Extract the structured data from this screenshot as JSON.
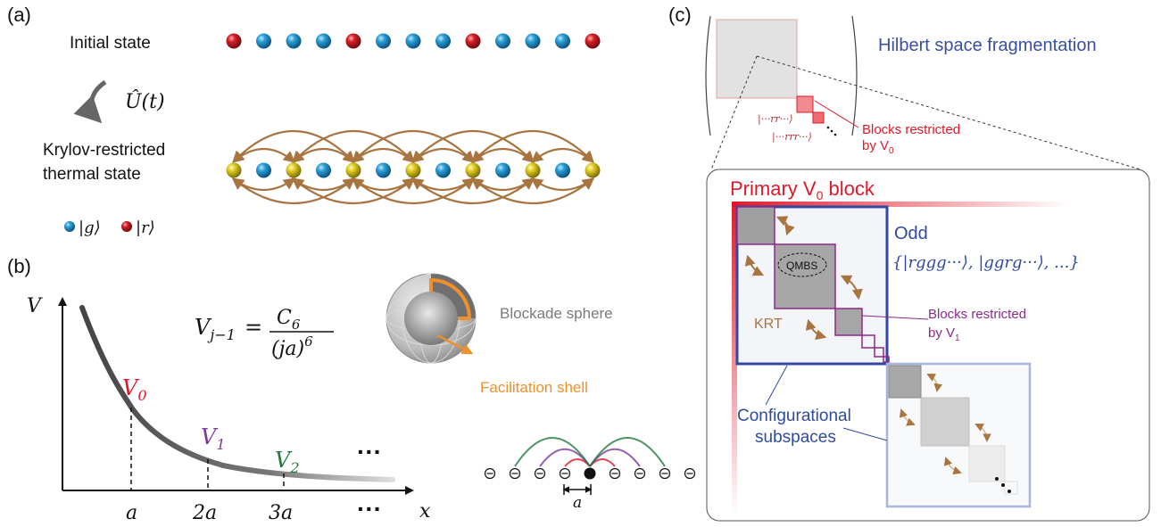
{
  "panel_a": {
    "label": "(a)",
    "initial_state": "Initial state",
    "evolution": "Û(t)",
    "krt_line1": "Krylov-restricted",
    "krt_line2": "thermal state",
    "legend_g": "|g⟩",
    "legend_r": "|r⟩",
    "initial_chain": [
      "r",
      "g",
      "g",
      "g",
      "r",
      "g",
      "g",
      "g",
      "r",
      "g",
      "g",
      "g",
      "r"
    ],
    "krt_chain": [
      "y",
      "g",
      "y",
      "g",
      "y",
      "g",
      "y",
      "g",
      "y",
      "g",
      "y",
      "g",
      "y"
    ],
    "colors": {
      "r": "#c1121f",
      "g": "#1a8fc4",
      "y": "#d8c41a",
      "arrow": "#a87440"
    }
  },
  "panel_b": {
    "label": "(b)",
    "y_axis": "V",
    "formula_lhs": "V",
    "formula_sub": "j−1",
    "formula_num": "C",
    "formula_num_sub": "6",
    "formula_den": "(ja)",
    "formula_den_sup": "6",
    "v0_letter": "V",
    "v0_sub": "0",
    "v1_letter": "V",
    "v1_sub": "1",
    "v2_letter": "V",
    "v2_sub": "2",
    "x_ticks": [
      "a",
      "2a",
      "3a",
      "···"
    ],
    "x_axis": "x",
    "dots": "···",
    "blockade_sphere": "Blockade sphere",
    "facilitation_shell": "Facilitation shell",
    "lattice_spacing": "a",
    "colors": {
      "v0": "#e0192a",
      "v1": "#7b3a9a",
      "v2": "#1f7a3a",
      "shell": "#f0902a"
    }
  },
  "panel_c": {
    "label": "(c)",
    "title": "Hilbert space fragmentation",
    "ket_rr": "|···rr···⟩",
    "ket_rrr": "|···rrr···⟩",
    "blocks_v0_line1": "Blocks restricted",
    "blocks_v0_line2": "by V",
    "blocks_v0_sub": "0",
    "primary_block": "Primary V",
    "primary_sub": "0",
    "primary_tail": " block",
    "odd_label": "Odd",
    "odd_set": "{|rggg···⟩, |ggrg···⟩, ...}",
    "qmbs": "QMBS",
    "krt": "KRT",
    "blocks_v1_line1": "Blocks restricted",
    "blocks_v1_line2": "by V",
    "blocks_v1_sub": "1",
    "config_line1": "Configurational",
    "config_line2": "subspaces",
    "colors": {
      "red": "#e0192a",
      "blue": "#2f4aa0",
      "purple": "#8b2a8a",
      "brown": "#a87440",
      "title": "#3a4fa0"
    }
  }
}
